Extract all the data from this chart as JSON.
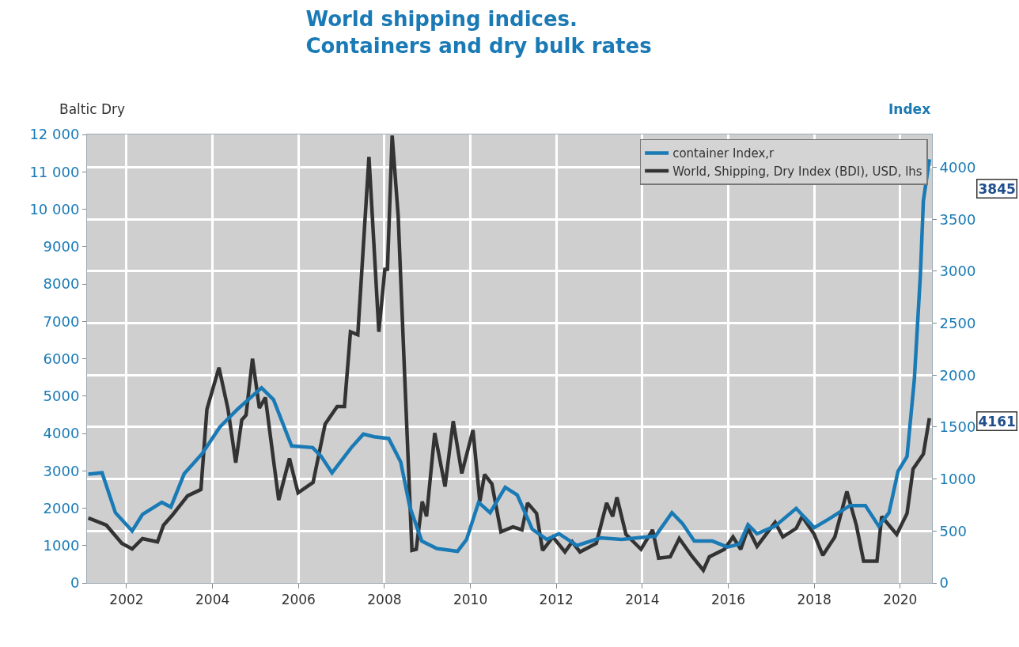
{
  "chart_data": {
    "type": "line",
    "title": "World shipping indices.\nContainers and dry bulk rates",
    "ylabel": "Baltic Dry",
    "y2label": "Index",
    "xlim": [
      2001.08,
      2020.74
    ],
    "xticks": [
      2002,
      2004,
      2006,
      2008,
      2010,
      2012,
      2014,
      2016,
      2018,
      2020
    ],
    "ylim": [
      0,
      12000
    ],
    "yticks": [
      {
        "value": 0,
        "label": "0"
      },
      {
        "value": 1000,
        "label": "1000"
      },
      {
        "value": 2000,
        "label": "2000"
      },
      {
        "value": 3000,
        "label": "3000"
      },
      {
        "value": 4000,
        "label": "4000"
      },
      {
        "value": 5000,
        "label": "5000"
      },
      {
        "value": 6000,
        "label": "6000"
      },
      {
        "value": 7000,
        "label": "7000"
      },
      {
        "value": 8000,
        "label": "8000"
      },
      {
        "value": 9000,
        "label": "9000"
      },
      {
        "value": 10000,
        "label": "10 000"
      },
      {
        "value": 11000,
        "label": "11 000"
      },
      {
        "value": 12000,
        "label": "12 000"
      }
    ],
    "y2lim": [
      0,
      4316
    ],
    "y2ticks": [
      0,
      500,
      1000,
      1500,
      2000,
      2500,
      3000,
      3500,
      4000
    ],
    "grid": true,
    "legend": "top right",
    "annotations": [
      "3845",
      "4161"
    ],
    "series": [
      {
        "name": "container Index,r",
        "color": "#1a7ab5",
        "axis": "y2",
        "x": [
          2001.11,
          2001.43,
          2001.74,
          2002.13,
          2002.37,
          2002.82,
          2003.03,
          2003.34,
          2003.76,
          2004.17,
          2004.59,
          2005.14,
          2005.42,
          2005.84,
          2006.33,
          2006.53,
          2006.78,
          2007.23,
          2007.51,
          2007.76,
          2008.1,
          2008.38,
          2008.59,
          2008.87,
          2009.22,
          2009.7,
          2009.91,
          2010.19,
          2010.46,
          2010.81,
          2011.09,
          2011.44,
          2011.78,
          2012.06,
          2012.48,
          2013.03,
          2013.52,
          2014.21,
          2014.3,
          2014.69,
          2014.93,
          2015.21,
          2015.63,
          2015.98,
          2016.26,
          2016.46,
          2016.67,
          2017.09,
          2017.58,
          2018.0,
          2018.35,
          2018.83,
          2019.19,
          2019.5,
          2019.74,
          2019.95,
          2020.16,
          2020.33,
          2020.47,
          2020.54,
          2020.68
        ],
        "values": [
          1046,
          1060,
          676,
          500,
          660,
          775,
          730,
          1050,
          1245,
          1500,
          1675,
          1877,
          1763,
          1318,
          1303,
          1217,
          1060,
          1303,
          1432,
          1406,
          1390,
          1163,
          732,
          403,
          331,
          304,
          418,
          775,
          676,
          920,
          846,
          517,
          418,
          474,
          360,
          433,
          418,
          448,
          448,
          676,
          574,
          403,
          403,
          345,
          374,
          560,
          474,
          547,
          717,
          532,
          617,
          745,
          745,
          547,
          676,
          1074,
          1217,
          1960,
          2963,
          3678,
          4077
        ]
      },
      {
        "name": "World, Shipping, Dry Index (BDI), USD, lhs",
        "color": "#333333",
        "x": [
          2001.11,
          2001.53,
          2001.89,
          2002.13,
          2002.37,
          2002.72,
          2002.86,
          2003.07,
          2003.42,
          2003.73,
          2003.87,
          2004.15,
          2004.36,
          2004.54,
          2004.68,
          2004.78,
          2004.93,
          2005.09,
          2005.23,
          2005.54,
          2005.79,
          2005.99,
          2006.34,
          2006.62,
          2006.9,
          2007.07,
          2007.21,
          2007.38,
          2007.64,
          2007.87,
          2008.01,
          2008.07,
          2008.18,
          2008.32,
          2008.46,
          2008.64,
          2008.74,
          2008.88,
          2008.98,
          2009.17,
          2009.41,
          2009.6,
          2009.8,
          2010.06,
          2010.22,
          2010.33,
          2010.5,
          2010.71,
          2010.99,
          2011.2,
          2011.33,
          2011.54,
          2011.68,
          2011.92,
          2012.2,
          2012.37,
          2012.55,
          2012.93,
          2013.17,
          2013.31,
          2013.41,
          2013.62,
          2013.97,
          2014.24,
          2014.38,
          2014.65,
          2014.86,
          2015.14,
          2015.42,
          2015.56,
          2015.91,
          2016.11,
          2016.29,
          2016.46,
          2016.67,
          2017.09,
          2017.27,
          2017.58,
          2017.72,
          2018.0,
          2018.2,
          2018.48,
          2018.76,
          2018.98,
          2019.15,
          2019.46,
          2019.57,
          2019.74,
          2019.92,
          2020.16,
          2020.3,
          2020.54,
          2020.68
        ],
        "values": [
          1740,
          1545,
          1060,
          910,
          1185,
          1100,
          1545,
          1820,
          2330,
          2500,
          4650,
          5760,
          4650,
          3220,
          4360,
          4490,
          6000,
          4680,
          4960,
          2220,
          3330,
          2410,
          2690,
          4250,
          4720,
          4720,
          6720,
          6640,
          11400,
          6720,
          8390,
          8390,
          11970,
          9820,
          5840,
          870,
          900,
          2180,
          1780,
          4010,
          2580,
          4330,
          2930,
          4090,
          2180,
          2900,
          2650,
          1370,
          1500,
          1420,
          2140,
          1860,
          870,
          1230,
          830,
          1100,
          830,
          1060,
          2140,
          1780,
          2290,
          1300,
          900,
          1420,
          660,
          700,
          1190,
          740,
          340,
          700,
          900,
          1230,
          900,
          1460,
          980,
          1620,
          1230,
          1460,
          1780,
          1300,
          740,
          1230,
          2450,
          1545,
          580,
          580,
          1780,
          1545,
          1300,
          1860,
          3050,
          3450,
          4410
        ]
      }
    ]
  }
}
